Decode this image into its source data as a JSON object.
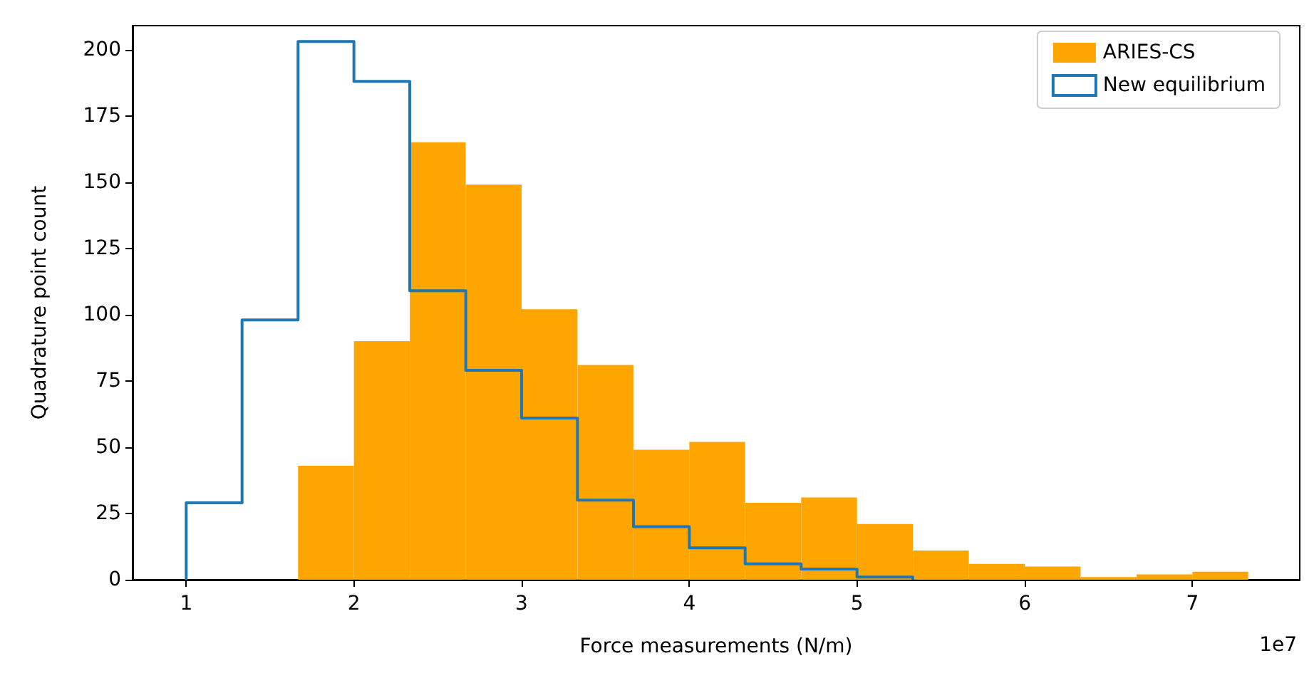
{
  "chart_data": {
    "type": "histogram",
    "xlabel": "Force measurements (N/m)",
    "ylabel": "Quadrature point count",
    "xlim": [
      0.68,
      7.64
    ],
    "xticks": [
      1,
      2,
      3,
      4,
      5,
      6,
      7
    ],
    "ylim": [
      0,
      209
    ],
    "yticks": [
      0,
      25,
      50,
      75,
      100,
      125,
      150,
      175,
      200
    ],
    "grid": false,
    "legend": "top right",
    "annotations": [
      "1e7"
    ],
    "bins": [
      1.0,
      1.333,
      1.667,
      2.0,
      2.333,
      2.667,
      3.0,
      3.333,
      3.667,
      4.0,
      4.333,
      4.667,
      5.0,
      5.333,
      5.667,
      6.0,
      6.333,
      6.667,
      7.0,
      7.333
    ],
    "series": [
      {
        "name": "ARIES-CS",
        "color": "#ffa500",
        "values": [
          null,
          null,
          43,
          90,
          165,
          149,
          102,
          81,
          49,
          52,
          29,
          31,
          21,
          11,
          6,
          5,
          1,
          2,
          3
        ]
      },
      {
        "name": "New equilibrium",
        "color": "#1f77b4",
        "type": "step",
        "x": [
          1.0,
          1.0,
          1.333,
          1.667,
          2.0,
          2.333,
          2.667,
          3.0,
          3.333,
          3.667,
          4.0,
          4.333,
          4.667,
          5.0,
          5.333
        ],
        "values": [
          0,
          29,
          98,
          203,
          188,
          109,
          79,
          61,
          30,
          20,
          12,
          6,
          4,
          1,
          0
        ]
      }
    ]
  }
}
